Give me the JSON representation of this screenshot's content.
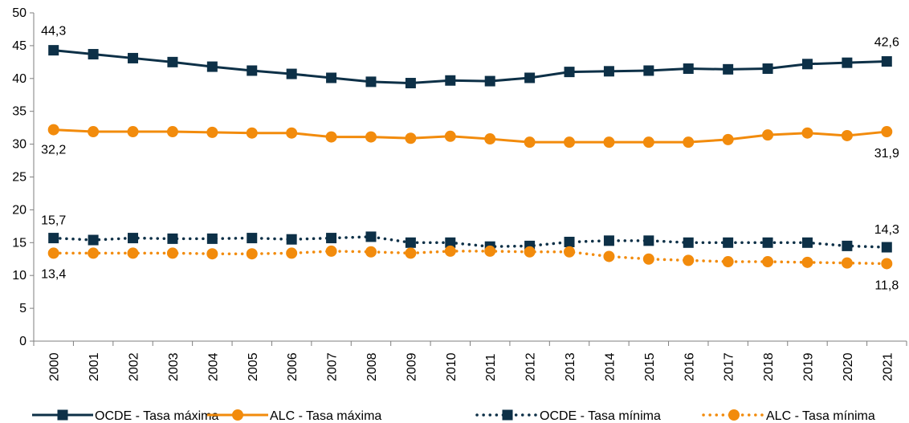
{
  "chart_data": {
    "type": "line",
    "title": "",
    "xlabel": "",
    "ylabel": "",
    "ylim": [
      0,
      50
    ],
    "yticks": [
      0,
      5,
      10,
      15,
      20,
      25,
      30,
      35,
      40,
      45,
      50
    ],
    "grid": false,
    "legend_position": "bottom",
    "categories": [
      "2000",
      "2001",
      "2002",
      "2003",
      "2004",
      "2005",
      "2006",
      "2007",
      "2008",
      "2009",
      "2010",
      "2011",
      "2012",
      "2013",
      "2014",
      "2015",
      "2016",
      "2017",
      "2018",
      "2019",
      "2020",
      "2021"
    ],
    "series": [
      {
        "name": "OCDE - Tasa máxima",
        "color": "#0d3047",
        "line_style": "solid",
        "marker": "square",
        "values": [
          44.3,
          43.7,
          43.1,
          42.5,
          41.8,
          41.2,
          40.7,
          40.1,
          39.5,
          39.3,
          39.7,
          39.6,
          40.1,
          41.0,
          41.1,
          41.2,
          41.5,
          41.4,
          41.5,
          42.2,
          42.4,
          42.6
        ]
      },
      {
        "name": "ALC - Tasa máxima",
        "color": "#f28b0c",
        "line_style": "solid",
        "marker": "circle",
        "values": [
          32.2,
          31.9,
          31.9,
          31.9,
          31.8,
          31.7,
          31.7,
          31.1,
          31.1,
          30.9,
          31.2,
          30.8,
          30.3,
          30.3,
          30.3,
          30.3,
          30.3,
          30.7,
          31.4,
          31.7,
          31.3,
          31.9
        ]
      },
      {
        "name": "OCDE - Tasa mínima",
        "color": "#0d3047",
        "line_style": "dotted",
        "marker": "square",
        "values": [
          15.7,
          15.4,
          15.7,
          15.6,
          15.6,
          15.7,
          15.5,
          15.7,
          15.9,
          15.0,
          15.0,
          14.4,
          14.5,
          15.1,
          15.3,
          15.3,
          15.0,
          15.0,
          15.0,
          15.0,
          14.5,
          14.3
        ]
      },
      {
        "name": "ALC - Tasa mínima",
        "color": "#f28b0c",
        "line_style": "dotted",
        "marker": "circle",
        "values": [
          13.4,
          13.4,
          13.4,
          13.4,
          13.3,
          13.3,
          13.4,
          13.7,
          13.6,
          13.4,
          13.7,
          13.7,
          13.6,
          13.6,
          12.9,
          12.5,
          12.3,
          12.1,
          12.1,
          12.0,
          11.9,
          11.8
        ]
      }
    ],
    "data_labels": [
      {
        "series": 0,
        "index": 0,
        "text": "44,3"
      },
      {
        "series": 0,
        "index": 21,
        "text": "42,6"
      },
      {
        "series": 1,
        "index": 0,
        "text": "32,2"
      },
      {
        "series": 1,
        "index": 21,
        "text": "31,9"
      },
      {
        "series": 2,
        "index": 0,
        "text": "15,7"
      },
      {
        "series": 2,
        "index": 21,
        "text": "14,3"
      },
      {
        "series": 3,
        "index": 0,
        "text": "13,4"
      },
      {
        "series": 3,
        "index": 21,
        "text": "11,8"
      }
    ]
  }
}
